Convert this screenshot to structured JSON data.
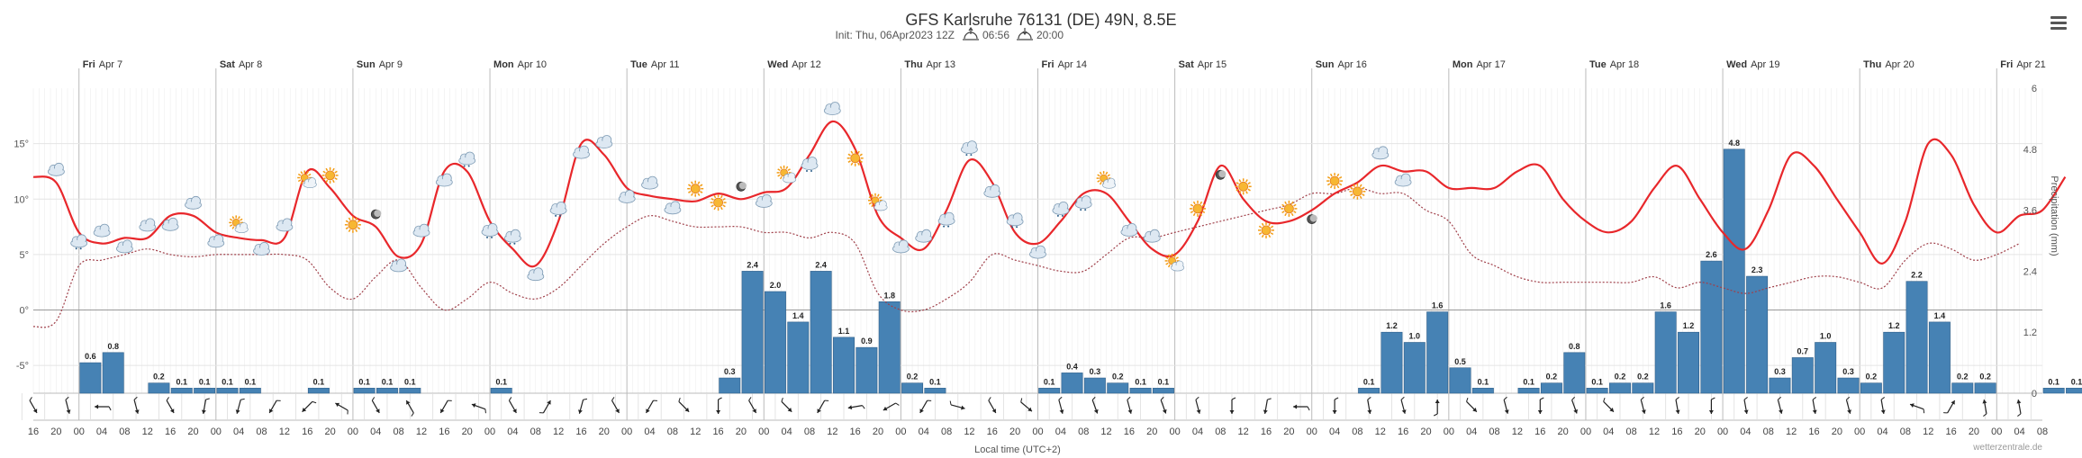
{
  "chart_data": {
    "type": "meteogram",
    "title": "GFS Karlsruhe 76131 (DE) 49N, 8.5E",
    "subtitle": {
      "init": "Init: Thu, 06Apr2023 12Z",
      "sunrise": "06:56",
      "sunset": "20:00"
    },
    "xlabel": "Local time (UTC+2)",
    "ylabel_right": "Precipitation (mm)",
    "credit": "wetterzentrale.de",
    "start_hour": 16,
    "step_hours": 4,
    "hour_labels": [
      "16",
      "20",
      "00",
      "04",
      "08",
      "12",
      "16",
      "20",
      "00",
      "04",
      "08",
      "12",
      "16",
      "20",
      "00",
      "04",
      "08",
      "12",
      "16",
      "20",
      "00",
      "04",
      "08",
      "12",
      "16",
      "20",
      "00",
      "04",
      "08",
      "12",
      "16",
      "20",
      "00",
      "04",
      "08",
      "12",
      "16",
      "20",
      "00",
      "04",
      "08",
      "12",
      "16",
      "20",
      "00",
      "04",
      "08",
      "12",
      "16",
      "20",
      "00",
      "04",
      "08",
      "12",
      "16",
      "20",
      "00",
      "04",
      "08",
      "12",
      "16",
      "20",
      "00",
      "04",
      "08",
      "12",
      "16",
      "20",
      "00",
      "04",
      "08",
      "12",
      "16",
      "20",
      "00",
      "04",
      "08",
      "12",
      "16",
      "20",
      "00",
      "04",
      "08",
      "12",
      "16",
      "20",
      "00",
      "04",
      "08"
    ],
    "days": [
      {
        "dow": "Fri",
        "date": "Apr 7"
      },
      {
        "dow": "Sat",
        "date": "Apr 8"
      },
      {
        "dow": "Sun",
        "date": "Apr 9"
      },
      {
        "dow": "Mon",
        "date": "Apr 10"
      },
      {
        "dow": "Tue",
        "date": "Apr 11"
      },
      {
        "dow": "Wed",
        "date": "Apr 12"
      },
      {
        "dow": "Thu",
        "date": "Apr 13"
      },
      {
        "dow": "Fri",
        "date": "Apr 14"
      },
      {
        "dow": "Sat",
        "date": "Apr 15"
      },
      {
        "dow": "Sun",
        "date": "Apr 16"
      },
      {
        "dow": "Mon",
        "date": "Apr 17"
      },
      {
        "dow": "Tue",
        "date": "Apr 18"
      },
      {
        "dow": "Wed",
        "date": "Apr 19"
      },
      {
        "dow": "Thu",
        "date": "Apr 20"
      },
      {
        "dow": "Fri",
        "date": "Apr 21"
      }
    ],
    "temp_axis": {
      "ticks": [
        "15°",
        "10°",
        "5°",
        "0°",
        "-5°"
      ],
      "values": [
        15,
        10,
        5,
        0,
        -5
      ],
      "ylim": [
        -7.5,
        20
      ]
    },
    "precip_axis": {
      "ticks": [
        "6",
        "4.8",
        "3.6",
        "2.4",
        "1.2",
        "0"
      ],
      "values": [
        6,
        4.8,
        3.6,
        2.4,
        1.2,
        0
      ],
      "ylim": [
        0,
        6
      ]
    },
    "series": [
      {
        "name": "Temperature",
        "color": "#e8272b",
        "values": [
          12,
          11.5,
          7,
          6,
          6.5,
          6.5,
          8.5,
          8.5,
          7,
          6.5,
          6.3,
          6.5,
          12.5,
          11,
          8.5,
          7.5,
          4.8,
          6,
          12.5,
          12.5,
          8,
          5.5,
          4,
          8,
          15,
          14,
          11,
          10.3,
          10,
          9.8,
          10.5,
          10,
          10.6,
          11,
          14,
          17,
          14.5,
          8.5,
          6.5,
          5.5,
          9,
          13.5,
          11.5,
          7,
          6,
          8,
          10.5,
          10.5,
          8,
          5.5,
          5,
          8,
          13,
          10,
          8,
          8,
          9,
          10.5,
          11.5,
          13,
          12.5,
          12.5,
          11,
          11,
          11,
          12.5,
          13,
          10,
          8,
          7,
          8,
          11,
          13,
          10,
          7,
          5.5,
          9,
          14,
          13,
          10,
          7,
          4.2,
          8,
          15,
          14,
          9.5,
          7,
          8.5,
          9,
          12
        ]
      },
      {
        "name": "Dew point",
        "color": "#a0404a",
        "dashed": true,
        "values": [
          -1.5,
          -1,
          4,
          4.5,
          5,
          5.5,
          5,
          4.8,
          5,
          5,
          5,
          5,
          4.5,
          2,
          1,
          3,
          4.5,
          2,
          0,
          1,
          2.5,
          1.5,
          1,
          2,
          4,
          6,
          7.5,
          8.5,
          8,
          7.5,
          7.5,
          7.5,
          7,
          7,
          6.5,
          7,
          6,
          1.5,
          0,
          0,
          1,
          2.5,
          5,
          4.5,
          4,
          3.5,
          3.5,
          5,
          6.5,
          6.5,
          7,
          7.5,
          8,
          8.5,
          9,
          9.5,
          10.5,
          10.5,
          11,
          10.5,
          10.5,
          9,
          8,
          5,
          4,
          3,
          2.5,
          2.5,
          2.5,
          2.5,
          2.5,
          3,
          2,
          2.5,
          2,
          1.5,
          2,
          2.5,
          3,
          3,
          2.5,
          2,
          4.5,
          6,
          5.5,
          4.5,
          5,
          6
        ]
      },
      {
        "name": "Precipitation",
        "color": "#4682b4",
        "values": [
          0,
          0,
          0.6,
          0.8,
          0,
          0.2,
          0.1,
          0.1,
          0.1,
          0.1,
          0,
          0,
          0.1,
          0,
          0.1,
          0.1,
          0.1,
          0,
          0,
          0,
          0.1,
          0,
          0,
          0,
          0,
          0,
          0,
          0,
          0,
          0,
          0.3,
          2.4,
          2.0,
          1.4,
          2.4,
          1.1,
          0.9,
          1.8,
          0.2,
          0.1,
          0,
          0,
          0,
          0,
          0.1,
          0.4,
          0.3,
          0.2,
          0.1,
          0.1,
          0,
          0,
          0,
          0,
          0,
          0,
          0,
          0,
          0.1,
          1.2,
          1.0,
          1.6,
          0.5,
          0.1,
          0,
          0.1,
          0.2,
          0.8,
          0.1,
          0.2,
          0.2,
          1.6,
          1.2,
          2.6,
          4.8,
          2.3,
          0.3,
          0.7,
          1.0,
          0.3,
          0.2,
          1.2,
          2.2,
          1.4,
          0.2,
          0.2,
          0,
          0,
          0.1,
          0.1
        ]
      }
    ],
    "bar_labels": [
      {
        "i": 2,
        "text": "0.6"
      },
      {
        "i": 3,
        "text": "0.8"
      },
      {
        "i": 5,
        "text": "0.2"
      },
      {
        "i": 6,
        "text": "0.1"
      },
      {
        "i": 7,
        "text": "0.1"
      },
      {
        "i": 8,
        "text": "0.1"
      },
      {
        "i": 9,
        "text": "0.1"
      },
      {
        "i": 12,
        "text": "0.1"
      },
      {
        "i": 14,
        "text": "0.1"
      },
      {
        "i": 15,
        "text": "0.1"
      },
      {
        "i": 16,
        "text": "0.1"
      },
      {
        "i": 20,
        "text": "0.1"
      },
      {
        "i": 30,
        "text": "0.3"
      },
      {
        "i": 31,
        "text": "2.4"
      },
      {
        "i": 32,
        "text": "2.0"
      },
      {
        "i": 33,
        "text": "1.4"
      },
      {
        "i": 34,
        "text": "2.4"
      },
      {
        "i": 35,
        "text": "1.1"
      },
      {
        "i": 36,
        "text": "0.9"
      },
      {
        "i": 37,
        "text": "1.8"
      },
      {
        "i": 38,
        "text": "0.2"
      },
      {
        "i": 39,
        "text": "0.1"
      },
      {
        "i": 44,
        "text": "0.1"
      },
      {
        "i": 45,
        "text": "0.4"
      },
      {
        "i": 46,
        "text": "0.3"
      },
      {
        "i": 47,
        "text": "0.2"
      },
      {
        "i": 48,
        "text": "0.1"
      },
      {
        "i": 49,
        "text": "0.1"
      },
      {
        "i": 58,
        "text": "0.1"
      },
      {
        "i": 59,
        "text": "1.2"
      },
      {
        "i": 60,
        "text": "1.0"
      },
      {
        "i": 61,
        "text": "1.6"
      },
      {
        "i": 62,
        "text": "0.5"
      },
      {
        "i": 63,
        "text": "0.1"
      },
      {
        "i": 65,
        "text": "0.1"
      },
      {
        "i": 66,
        "text": "0.2"
      },
      {
        "i": 67,
        "text": "0.8"
      },
      {
        "i": 68,
        "text": "0.1"
      },
      {
        "i": 69,
        "text": "0.2"
      },
      {
        "i": 70,
        "text": "0.2"
      },
      {
        "i": 71,
        "text": "1.6"
      },
      {
        "i": 72,
        "text": "1.2"
      },
      {
        "i": 73,
        "text": "2.6"
      },
      {
        "i": 74,
        "text": "4.8"
      },
      {
        "i": 75,
        "text": "2.3"
      },
      {
        "i": 76,
        "text": "0.3"
      },
      {
        "i": 77,
        "text": "0.7"
      },
      {
        "i": 78,
        "text": "1.0"
      },
      {
        "i": 79,
        "text": "0.3"
      },
      {
        "i": 80,
        "text": "0.2"
      },
      {
        "i": 81,
        "text": "1.2"
      },
      {
        "i": 82,
        "text": "2.2"
      },
      {
        "i": 83,
        "text": "1.4"
      },
      {
        "i": 84,
        "text": "0.2"
      },
      {
        "i": 85,
        "text": "0.2"
      },
      {
        "i": 88,
        "text": "0.1"
      },
      {
        "i": 89,
        "text": "0.1"
      }
    ],
    "weather_icons": [
      {
        "i": 1,
        "type": "cloud"
      },
      {
        "i": 2,
        "type": "cloud-rain"
      },
      {
        "i": 3,
        "type": "cloud"
      },
      {
        "i": 4,
        "type": "cloud"
      },
      {
        "i": 5,
        "type": "cloud"
      },
      {
        "i": 6,
        "type": "cloud"
      },
      {
        "i": 7,
        "type": "cloud"
      },
      {
        "i": 8,
        "type": "cloud"
      },
      {
        "i": 9,
        "type": "sun-cloud"
      },
      {
        "i": 10,
        "type": "cloud"
      },
      {
        "i": 11,
        "type": "cloud"
      },
      {
        "i": 12,
        "type": "sun-cloud"
      },
      {
        "i": 13,
        "type": "sun"
      },
      {
        "i": 14,
        "type": "sun"
      },
      {
        "i": 15,
        "type": "moon"
      },
      {
        "i": 16,
        "type": "cloud"
      },
      {
        "i": 17,
        "type": "cloud"
      },
      {
        "i": 18,
        "type": "cloud"
      },
      {
        "i": 19,
        "type": "cloud-rain"
      },
      {
        "i": 20,
        "type": "cloud-rain"
      },
      {
        "i": 21,
        "type": "cloud-rain"
      },
      {
        "i": 22,
        "type": "cloud"
      },
      {
        "i": 23,
        "type": "cloud-rain"
      },
      {
        "i": 24,
        "type": "cloud"
      },
      {
        "i": 25,
        "type": "cloud"
      },
      {
        "i": 26,
        "type": "cloud"
      },
      {
        "i": 27,
        "type": "cloud"
      },
      {
        "i": 28,
        "type": "cloud"
      },
      {
        "i": 29,
        "type": "sun"
      },
      {
        "i": 30,
        "type": "sun"
      },
      {
        "i": 31,
        "type": "moon"
      },
      {
        "i": 32,
        "type": "cloud"
      },
      {
        "i": 33,
        "type": "sun-cloud"
      },
      {
        "i": 34,
        "type": "cloud-rain"
      },
      {
        "i": 35,
        "type": "cloud"
      },
      {
        "i": 36,
        "type": "sun"
      },
      {
        "i": 37,
        "type": "sun-cloud"
      },
      {
        "i": 38,
        "type": "cloud"
      },
      {
        "i": 39,
        "type": "cloud"
      },
      {
        "i": 40,
        "type": "cloud-rain"
      },
      {
        "i": 41,
        "type": "cloud-rain"
      },
      {
        "i": 42,
        "type": "cloud"
      },
      {
        "i": 43,
        "type": "cloud-rain"
      },
      {
        "i": 44,
        "type": "cloud"
      },
      {
        "i": 45,
        "type": "cloud-rain"
      },
      {
        "i": 46,
        "type": "cloud-rain"
      },
      {
        "i": 47,
        "type": "sun-cloud"
      },
      {
        "i": 48,
        "type": "cloud"
      },
      {
        "i": 49,
        "type": "cloud"
      },
      {
        "i": 50,
        "type": "sun-cloud"
      },
      {
        "i": 51,
        "type": "sun"
      },
      {
        "i": 52,
        "type": "moon"
      },
      {
        "i": 53,
        "type": "sun"
      },
      {
        "i": 54,
        "type": "sun"
      },
      {
        "i": 55,
        "type": "sun"
      },
      {
        "i": 56,
        "type": "moon"
      },
      {
        "i": 57,
        "type": "sun"
      },
      {
        "i": 58,
        "type": "sun"
      },
      {
        "i": 59,
        "type": "cloud"
      },
      {
        "i": 60,
        "type": "cloud"
      }
    ],
    "wind_dirs": [
      60,
      75,
      180,
      75,
      60,
      100,
      105,
      120,
      135,
      210,
      60,
      240,
      120,
      200,
      60,
      300,
      105,
      60,
      120,
      45,
      90,
      60,
      45,
      120,
      170,
      150,
      120,
      15,
      60,
      40,
      75,
      70,
      75,
      70,
      75,
      90,
      100,
      180,
      90,
      80,
      75,
      270,
      45,
      75,
      90,
      70,
      45,
      75,
      80,
      90,
      80,
      75,
      80,
      75,
      80,
      200,
      300,
      260,
      260,
      270,
      60
    ]
  }
}
